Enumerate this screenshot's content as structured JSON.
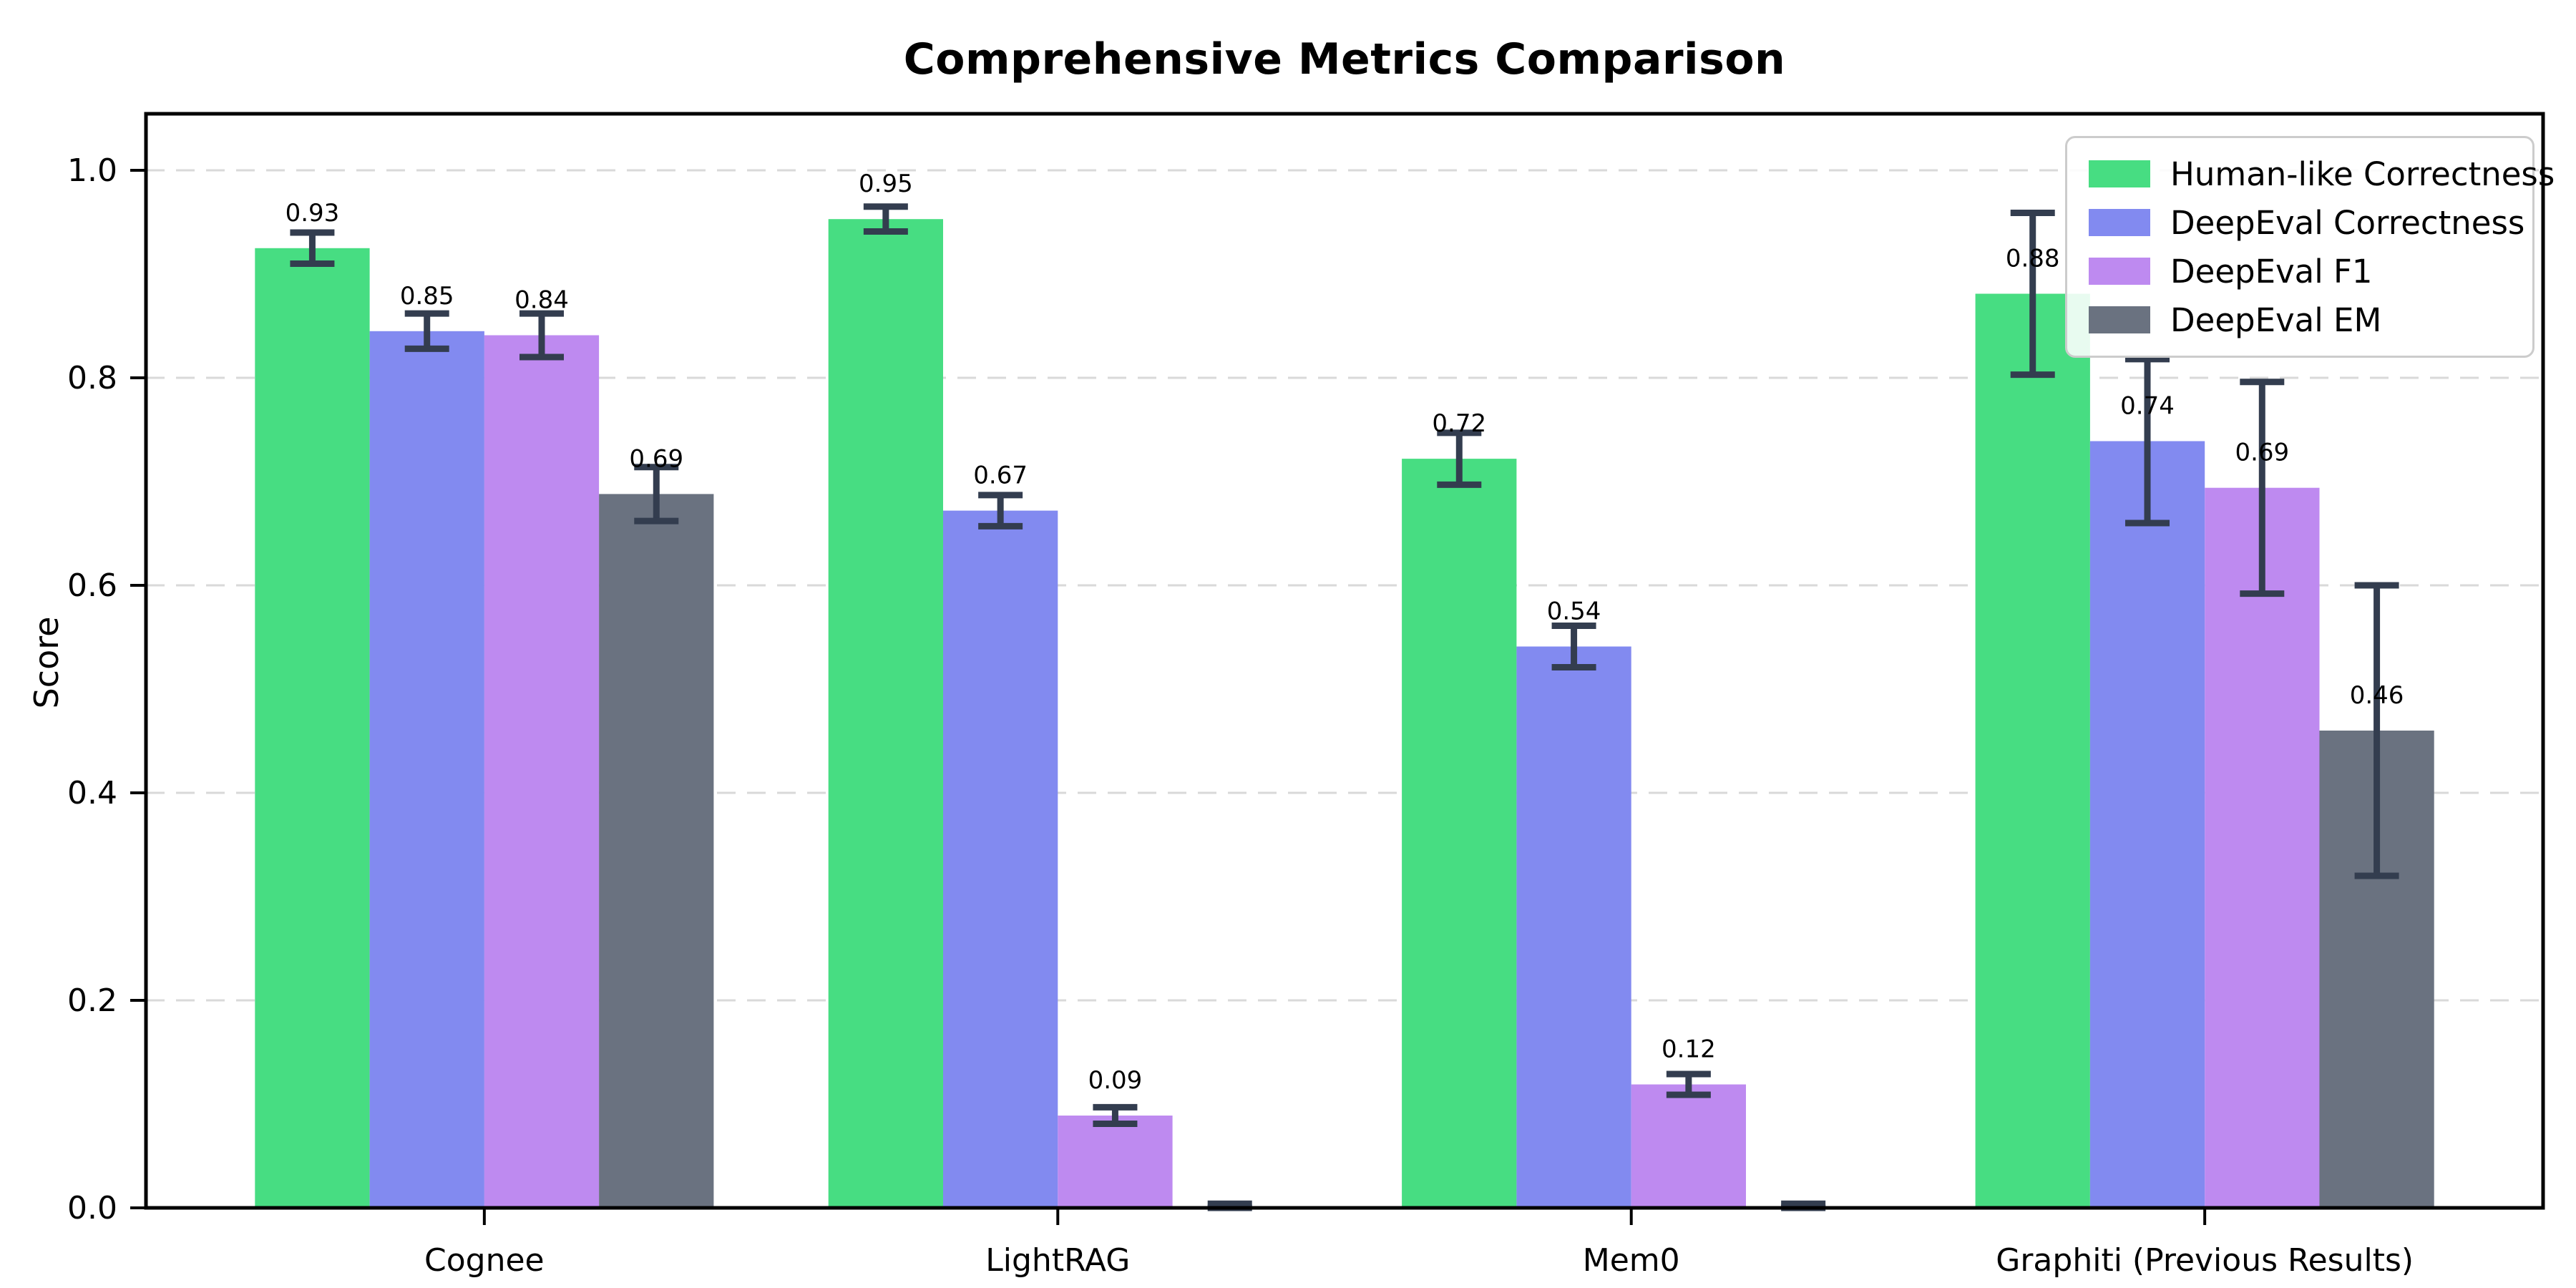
{
  "chart_data": {
    "type": "bar",
    "title": "Comprehensive Metrics Comparison",
    "xlabel": "",
    "ylabel": "Score",
    "categories": [
      "Cognee",
      "LightRAG",
      "Mem0",
      "Graphiti (Previous Results)"
    ],
    "series": [
      {
        "name": "Human-like Correctness",
        "color": "#47DD82",
        "values": [
          0.925,
          0.953,
          0.722,
          0.881
        ],
        "errors": [
          0.015,
          0.012,
          0.025,
          0.078
        ],
        "labels": [
          "0.93",
          "0.95",
          "0.72",
          "0.88"
        ]
      },
      {
        "name": "DeepEval Correctness",
        "color": "#828AF0",
        "values": [
          0.845,
          0.672,
          0.541,
          0.739
        ],
        "errors": [
          0.017,
          0.015,
          0.02,
          0.079
        ],
        "labels": [
          "0.85",
          "0.67",
          "0.54",
          "0.74"
        ]
      },
      {
        "name": "DeepEval F1",
        "color": "#BE8AF0",
        "values": [
          0.841,
          0.089,
          0.119,
          0.694
        ],
        "errors": [
          0.021,
          0.008,
          0.01,
          0.102
        ],
        "labels": [
          "0.84",
          "0.09",
          "0.12",
          "0.69"
        ]
      },
      {
        "name": "DeepEval EM",
        "color": "#6A7280",
        "values": [
          0.688,
          0.001,
          0.001,
          0.46
        ],
        "errors": [
          0.026,
          0.003,
          0.003,
          0.14
        ],
        "labels": [
          "0.69",
          null,
          null,
          "0.46"
        ]
      }
    ],
    "yticks": [
      "0.0",
      "0.2",
      "0.4",
      "0.6",
      "0.8",
      "1.0"
    ],
    "ylim": [
      0.0,
      1.05
    ],
    "grid": "horizontal dashed gridlines at 0.2 intervals",
    "legend_position": "upper right",
    "error_bar_color": "#333D4F",
    "grid_color": "#D9D9D9",
    "axis_color": "#000000"
  }
}
